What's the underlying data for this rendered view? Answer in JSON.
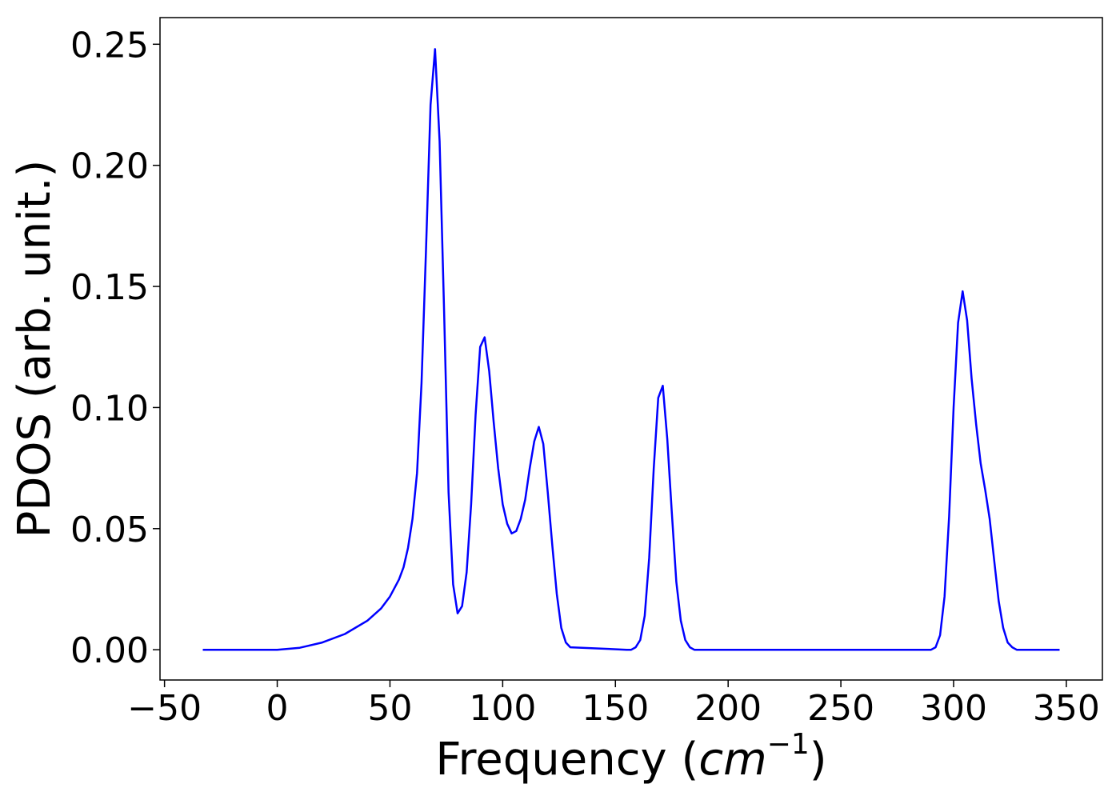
{
  "chart_data": {
    "type": "line",
    "title": "",
    "xlabel": "Frequency (",
    "xlabel_math": "cm",
    "xlabel_exp": "−1",
    "xlabel_end": ")",
    "ylabel": "PDOS (arb. unit.)",
    "xlim": [
      -52,
      366
    ],
    "ylim": [
      -0.0125,
      0.261
    ],
    "xticks": [
      -50,
      0,
      50,
      100,
      150,
      200,
      250,
      300,
      350
    ],
    "xtick_labels": [
      "−50",
      "0",
      "50",
      "100",
      "150",
      "200",
      "250",
      "300",
      "350"
    ],
    "yticks": [
      0.0,
      0.05,
      0.1,
      0.15,
      0.2,
      0.25
    ],
    "ytick_labels": [
      "0.00",
      "0.05",
      "0.10",
      "0.15",
      "0.20",
      "0.25"
    ],
    "grid": false,
    "color": "#0000ff",
    "series": [
      {
        "x": [
          -33,
          0,
          10,
          20,
          30,
          40,
          46,
          50,
          54,
          56,
          58,
          60,
          62,
          64,
          66,
          68,
          70,
          72,
          74,
          76,
          78,
          80,
          82,
          84,
          86,
          88,
          90,
          92,
          94,
          96,
          98,
          100,
          102,
          104,
          106,
          108,
          110,
          112,
          114,
          116,
          118,
          120,
          122,
          124,
          126,
          128,
          130,
          155,
          157,
          159,
          161,
          163,
          165,
          167,
          169,
          171,
          173,
          175,
          177,
          179,
          181,
          183,
          185,
          290,
          292,
          294,
          296,
          298,
          300,
          302,
          304,
          306,
          308,
          310,
          312,
          314,
          316,
          318,
          320,
          322,
          324,
          326,
          328,
          347
        ],
        "y": [
          0.0,
          0.0,
          0.0008,
          0.003,
          0.0065,
          0.012,
          0.017,
          0.022,
          0.029,
          0.034,
          0.042,
          0.054,
          0.073,
          0.11,
          0.165,
          0.225,
          0.248,
          0.21,
          0.14,
          0.065,
          0.027,
          0.015,
          0.018,
          0.032,
          0.06,
          0.097,
          0.125,
          0.129,
          0.115,
          0.094,
          0.075,
          0.06,
          0.052,
          0.048,
          0.049,
          0.054,
          0.062,
          0.075,
          0.086,
          0.092,
          0.085,
          0.065,
          0.043,
          0.023,
          0.009,
          0.003,
          0.001,
          0.0,
          0.0,
          0.001,
          0.004,
          0.014,
          0.038,
          0.075,
          0.104,
          0.109,
          0.087,
          0.057,
          0.028,
          0.012,
          0.004,
          0.001,
          0.0,
          0.0,
          0.001,
          0.006,
          0.022,
          0.055,
          0.1,
          0.135,
          0.148,
          0.136,
          0.112,
          0.093,
          0.077,
          0.066,
          0.054,
          0.037,
          0.02,
          0.009,
          0.003,
          0.001,
          0.0,
          0.0
        ]
      }
    ]
  }
}
